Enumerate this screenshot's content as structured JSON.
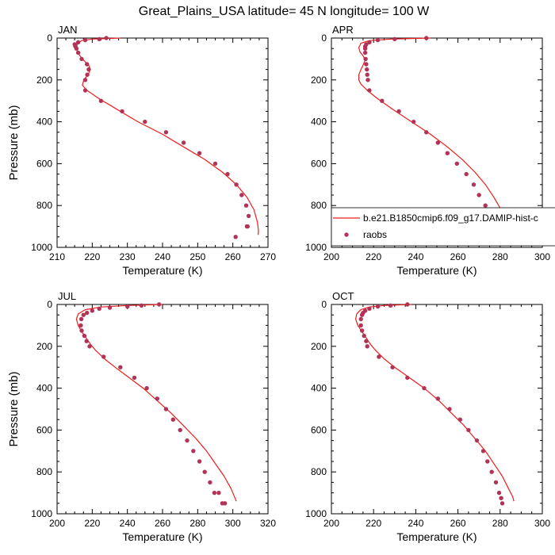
{
  "title": "Great_Plains_USA  latitude= 45 N longitude= 100 W",
  "colors": {
    "model": "#ee1c1c",
    "obs": "#b33356",
    "axis": "#000000"
  },
  "legend": {
    "model_label": "b.e21.B1850cmip6.f09_g17.DAMIP-hist-c",
    "obs_label": "raobs",
    "panel": "APR",
    "placement": "lower-right"
  },
  "chart_data": [
    {
      "type": "line",
      "panel": "JAN",
      "xlabel": "Temperature (K)",
      "ylabel": "Pressure (mb)",
      "xlim": [
        210,
        270
      ],
      "ylim": [
        1000,
        0
      ],
      "xticks": [
        "210",
        "220",
        "230",
        "240",
        "250",
        "260",
        "270"
      ],
      "yticks": [
        "0",
        "200",
        "400",
        "600",
        "800",
        "1000"
      ],
      "series": [
        {
          "kind": "line",
          "x": [
            228,
            220,
            217,
            215.8,
            215.5,
            215.8,
            216.5,
            217.5,
            219,
            219.5,
            218.8,
            217.6,
            217.2,
            218.5,
            222,
            227,
            233,
            240,
            246,
            252,
            257,
            261,
            264,
            266,
            267,
            267.3,
            267.2
          ],
          "y": [
            0,
            5,
            12,
            25,
            45,
            65,
            85,
            105,
            130,
            150,
            175,
            200,
            225,
            250,
            290,
            340,
            400,
            460,
            520,
            580,
            640,
            700,
            760,
            820,
            880,
            920,
            940
          ]
        },
        {
          "kind": "scatter",
          "x": [
            224,
            222,
            218,
            216,
            215,
            215.2,
            215.5,
            216,
            217,
            218.5,
            219,
            218.6,
            218,
            218,
            222.5,
            228.5,
            235,
            241,
            246,
            250.5,
            255,
            258.5,
            261,
            262.5,
            263.8,
            264.5,
            264.2,
            264,
            260.8
          ],
          "y": [
            0,
            5,
            10,
            20,
            30,
            40,
            50,
            70,
            100,
            125,
            150,
            175,
            200,
            250,
            300,
            350,
            400,
            450,
            500,
            550,
            600,
            650,
            700,
            750,
            800,
            850,
            900,
            900,
            950
          ]
        }
      ]
    },
    {
      "type": "line",
      "panel": "APR",
      "xlabel": "Temperature (K)",
      "ylabel": "",
      "xlim": [
        200,
        300
      ],
      "ylim": [
        1000,
        0
      ],
      "xticks": [
        "200",
        "220",
        "240",
        "260",
        "280",
        "300"
      ],
      "yticks": [
        "0",
        "200",
        "400",
        "600",
        "800",
        "1000"
      ],
      "series": [
        {
          "kind": "line",
          "x": [
            247,
            228,
            218,
            214,
            213,
            213.5,
            215,
            216,
            215,
            214,
            213,
            213,
            214,
            217,
            222,
            229,
            238,
            247,
            255,
            262,
            268,
            273,
            277,
            281,
            284,
            285
          ],
          "y": [
            0,
            5,
            12,
            25,
            45,
            65,
            85,
            105,
            130,
            150,
            175,
            200,
            220,
            250,
            290,
            340,
            400,
            460,
            520,
            580,
            640,
            700,
            760,
            830,
            900,
            940
          ]
        },
        {
          "kind": "scatter",
          "x": [
            245,
            230,
            222,
            218,
            216.5,
            216,
            216,
            216,
            216.2,
            216.5,
            216.8,
            217,
            217.3,
            218,
            224,
            232,
            239,
            245,
            250.5,
            255,
            259.5,
            264,
            267.5,
            270,
            273,
            276,
            278,
            279.5
          ],
          "y": [
            0,
            5,
            10,
            20,
            30,
            40,
            50,
            70,
            100,
            125,
            150,
            175,
            200,
            250,
            300,
            350,
            400,
            450,
            500,
            550,
            600,
            650,
            700,
            750,
            800,
            850,
            900,
            950
          ]
        }
      ]
    },
    {
      "type": "line",
      "panel": "JUL",
      "xlabel": "Temperature (K)",
      "ylabel": "Pressure (mb)",
      "xlim": [
        200,
        320
      ],
      "ylim": [
        1000,
        0
      ],
      "xticks": [
        "200",
        "220",
        "240",
        "260",
        "280",
        "300",
        "320"
      ],
      "yticks": [
        "0",
        "200",
        "400",
        "600",
        "800",
        "1000"
      ],
      "series": [
        {
          "kind": "line",
          "x": [
            260,
            240,
            225,
            216,
            212,
            211,
            212,
            214,
            216.5,
            219,
            222,
            227,
            233,
            241,
            249,
            257,
            265,
            272,
            279,
            285,
            290,
            295,
            299,
            302
          ],
          "y": [
            0,
            5,
            12,
            25,
            45,
            70,
            100,
            130,
            160,
            190,
            220,
            260,
            300,
            350,
            400,
            460,
            520,
            580,
            640,
            700,
            760,
            820,
            880,
            940
          ]
        },
        {
          "kind": "scatter",
          "x": [
            258,
            248,
            240,
            230,
            224,
            220,
            217,
            215,
            213.8,
            213.5,
            214,
            215.5,
            216.8,
            218.5,
            226.5,
            236,
            244,
            251,
            257,
            262,
            266,
            270,
            274,
            277.5,
            281,
            284,
            287,
            289.5,
            292,
            294,
            295.5
          ],
          "y": [
            0,
            5,
            10,
            15,
            20,
            30,
            40,
            50,
            70,
            100,
            125,
            150,
            175,
            200,
            250,
            300,
            350,
            400,
            450,
            500,
            550,
            600,
            650,
            700,
            750,
            800,
            850,
            900,
            900,
            950,
            950
          ]
        }
      ]
    },
    {
      "type": "line",
      "panel": "OCT",
      "xlabel": "Temperature (K)",
      "ylabel": "",
      "xlim": [
        200,
        300
      ],
      "ylim": [
        1000,
        0
      ],
      "xticks": [
        "200",
        "220",
        "240",
        "260",
        "280",
        "300"
      ],
      "yticks": [
        "0",
        "200",
        "400",
        "600",
        "800",
        "1000"
      ],
      "series": [
        {
          "kind": "line",
          "x": [
            238,
            225,
            218,
            214,
            212,
            211.5,
            212.5,
            214.5,
            216.5,
            218.5,
            221,
            225,
            230,
            237,
            244,
            251,
            257,
            263,
            268,
            273,
            277,
            281,
            284,
            286,
            286.5
          ],
          "y": [
            0,
            5,
            12,
            25,
            45,
            70,
            100,
            130,
            160,
            190,
            220,
            260,
            300,
            350,
            400,
            460,
            520,
            580,
            640,
            700,
            760,
            820,
            880,
            920,
            940
          ]
        },
        {
          "kind": "scatter",
          "x": [
            236,
            228,
            222,
            218,
            216,
            215,
            214.5,
            214,
            214,
            214.5,
            215.5,
            216.5,
            217,
            222.5,
            229,
            236,
            244,
            250.5,
            256,
            261,
            265,
            269,
            272,
            274,
            276,
            278,
            279.5,
            280.5,
            281
          ],
          "y": [
            0,
            5,
            10,
            20,
            30,
            40,
            50,
            70,
            100,
            125,
            150,
            175,
            200,
            250,
            300,
            350,
            400,
            450,
            500,
            550,
            600,
            650,
            700,
            750,
            800,
            850,
            900,
            925,
            950
          ]
        }
      ]
    }
  ]
}
